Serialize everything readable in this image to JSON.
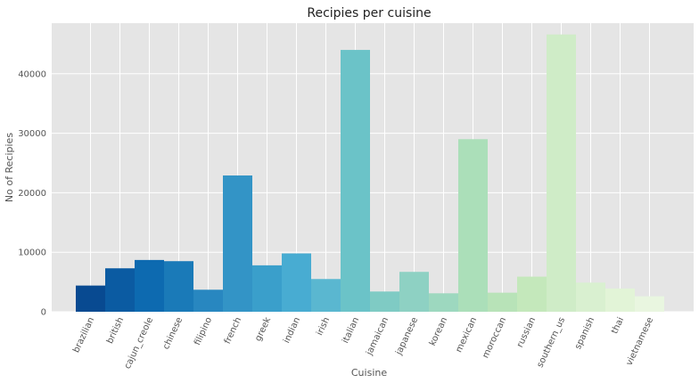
{
  "chart_data": {
    "type": "bar",
    "title": "Recipies per cuisine",
    "xlabel": "Cuisine",
    "ylabel": "No of Recipies",
    "categories": [
      "brazilian",
      "british",
      "cajun_creole",
      "chinese",
      "filipino",
      "french",
      "greek",
      "indian",
      "irish",
      "italian",
      "jamaican",
      "japanese",
      "korean",
      "mexican",
      "moroccan",
      "russian",
      "southern_us",
      "spanish",
      "thai",
      "vietnamese"
    ],
    "values": [
      4400,
      7300,
      8700,
      8500,
      3700,
      22900,
      7800,
      9800,
      5500,
      44000,
      3400,
      6700,
      3100,
      29000,
      3200,
      5900,
      46600,
      4900,
      3900,
      2600
    ],
    "colors": [
      "#084a91",
      "#0b5ba2",
      "#0d6ab0",
      "#1a7ab8",
      "#2887c0",
      "#3394c6",
      "#3a9fcb",
      "#48acd2",
      "#5ab7d0",
      "#6bc3c8",
      "#7fcbc4",
      "#8ed1c3",
      "#9dd8bf",
      "#abdfb9",
      "#b8e3b8",
      "#c4e8bb",
      "#cfecc7",
      "#d9f0d0",
      "#e2f4d7",
      "#e9f6e0"
    ],
    "yticks": [
      0,
      10000,
      20000,
      30000,
      40000
    ],
    "ylim": [
      0,
      48500
    ],
    "grid": true,
    "background": "#e5e5e5"
  }
}
